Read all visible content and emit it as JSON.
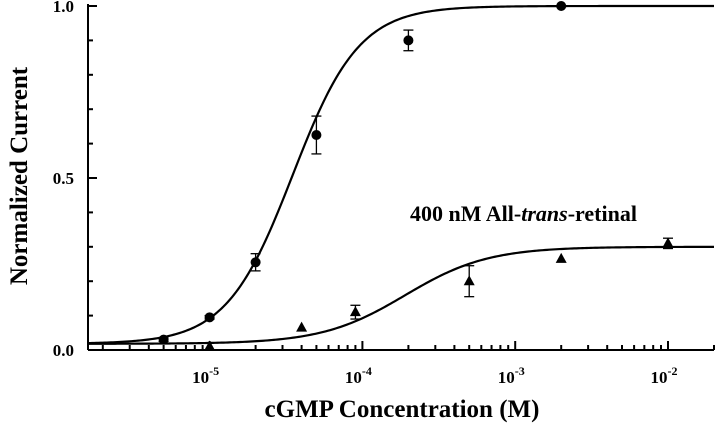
{
  "chart_data": {
    "type": "scatter",
    "title": "",
    "xlabel": "cGMP Concentration (M)",
    "ylabel": "Normalized Current",
    "x_scale": "log",
    "xlim": [
      1.6e-06,
      0.02
    ],
    "ylim": [
      0,
      1.0
    ],
    "x_ticks": [
      {
        "value": 1e-05,
        "base": "10",
        "exp": "-5"
      },
      {
        "value": 0.0001,
        "base": "10",
        "exp": "-4"
      },
      {
        "value": 0.001,
        "base": "10",
        "exp": "-3"
      },
      {
        "value": 0.01,
        "base": "10",
        "exp": "-2"
      }
    ],
    "y_ticks": [
      {
        "value": 0.0,
        "label": "0.0"
      },
      {
        "value": 0.5,
        "label": "0.5"
      },
      {
        "value": 1.0,
        "label": "1.0"
      }
    ],
    "annotation": {
      "prefix": "400 nM All-",
      "italic": "trans",
      "suffix": "-retinal"
    },
    "series": [
      {
        "marker": "circle",
        "points": [
          {
            "x": 5e-06,
            "y": 0.03,
            "err": 0.005
          },
          {
            "x": 1e-05,
            "y": 0.095,
            "err": 0.005
          },
          {
            "x": 2e-05,
            "y": 0.255,
            "err": 0.025
          },
          {
            "x": 5e-05,
            "y": 0.625,
            "err": 0.055
          },
          {
            "x": 0.0002,
            "y": 0.9,
            "err": 0.03
          },
          {
            "x": 0.002,
            "y": 1.0,
            "err": 0.0
          }
        ],
        "fit": {
          "imax": 1.0,
          "k": 3.5e-05,
          "n": 2.0
        }
      },
      {
        "marker": "triangle",
        "points": [
          {
            "x": 1e-05,
            "y": 0.01,
            "err": 0.0
          },
          {
            "x": 4e-05,
            "y": 0.065,
            "err": 0.0
          },
          {
            "x": 9e-05,
            "y": 0.11,
            "err": 0.02
          },
          {
            "x": 0.0005,
            "y": 0.2,
            "err": 0.045
          },
          {
            "x": 0.002,
            "y": 0.265,
            "err": 0.0
          },
          {
            "x": 0.01,
            "y": 0.31,
            "err": 0.015
          }
        ],
        "fit": {
          "imax": 0.3,
          "k": 0.00019,
          "n": 1.6
        }
      }
    ],
    "baseline": 0.018
  }
}
